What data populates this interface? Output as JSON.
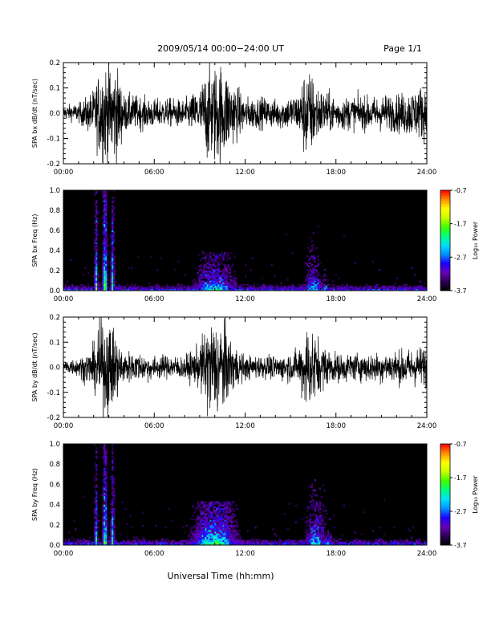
{
  "header": {
    "title": "2009/05/14  00:00−24:00 UT",
    "page": "Page 1/1"
  },
  "footer": {
    "xlabel": "Universal Time (hh:mm)"
  },
  "colorbar": {
    "label": "Log₁₀ Power",
    "ticks": [
      "-0.7",
      "-1.7",
      "-2.7",
      "-3.7"
    ],
    "range": [
      -3.7,
      -0.7
    ],
    "colors": [
      "#000000",
      "#2a0052",
      "#6a00b8",
      "#1e00ff",
      "#0090ff",
      "#00e0ff",
      "#00ff80",
      "#40ff00",
      "#c8ff00",
      "#ffff00",
      "#ff9000",
      "#ff0000"
    ]
  },
  "chart_data": [
    {
      "type": "line",
      "ylabel": "SPA bx dB/dt (nT/sec)",
      "xlim": [
        "00:00",
        "24:00"
      ],
      "xticks": [
        "00:00",
        "06:00",
        "12:00",
        "18:00",
        "24:00"
      ],
      "ylim": [
        -0.2,
        0.2
      ],
      "yticks": [
        "-0.2",
        "-0.1",
        "0.0",
        "0.1",
        "0.2"
      ],
      "series": [
        {
          "x": [
            "00:00",
            "01:00",
            "02:00",
            "02:30",
            "03:00",
            "03:30",
            "04:00",
            "06:00",
            "08:00",
            "09:00",
            "09:30",
            "10:00",
            "10:30",
            "11:00",
            "12:00",
            "14:00",
            "15:30",
            "16:00",
            "16:30",
            "17:00",
            "18:00",
            "20:00",
            "22:00",
            "23:00",
            "24:00"
          ],
          "amplitude": [
            0.03,
            0.04,
            0.1,
            0.21,
            0.21,
            0.21,
            0.08,
            0.06,
            0.06,
            0.1,
            0.2,
            0.21,
            0.21,
            0.15,
            0.07,
            0.06,
            0.08,
            0.2,
            0.16,
            0.1,
            0.07,
            0.07,
            0.08,
            0.1,
            0.12
          ]
        }
      ]
    },
    {
      "type": "heatmap",
      "ylabel": "SPA bx Freq (Hz)",
      "xlim": [
        "00:00",
        "24:00"
      ],
      "xticks": [
        "00:00",
        "06:00",
        "12:00",
        "18:00",
        "24:00"
      ],
      "ylim": [
        0.0,
        1.0
      ],
      "yticks": [
        "0.0",
        "0.2",
        "0.4",
        "0.6",
        "0.8",
        "1.0"
      ],
      "zlim": [
        -3.7,
        -0.7
      ],
      "bursts": [
        {
          "time": "02:10",
          "width_h": 0.15,
          "log_power_low": -1.9,
          "fmax": 1.0
        },
        {
          "time": "02:45",
          "width_h": 0.2,
          "log_power_low": -1.6,
          "fmax": 1.0
        },
        {
          "time": "03:15",
          "width_h": 0.15,
          "log_power_low": -1.8,
          "fmax": 1.0
        },
        {
          "time": "10:00",
          "width_h": 1.8,
          "log_power_low": -2.0,
          "fmax": 0.35
        },
        {
          "time": "11:20",
          "width_h": 0.15,
          "log_power_low": -2.8,
          "fmax": 0.55
        },
        {
          "time": "16:30",
          "width_h": 0.8,
          "log_power_low": -2.4,
          "fmax": 0.6
        },
        {
          "time": "17:20",
          "width_h": 0.4,
          "log_power_low": -2.8,
          "fmax": 0.5
        }
      ]
    },
    {
      "type": "line",
      "ylabel": "SPA by dB/dt (nT/sec)",
      "xlim": [
        "00:00",
        "24:00"
      ],
      "xticks": [
        "00:00",
        "06:00",
        "12:00",
        "18:00",
        "24:00"
      ],
      "ylim": [
        -0.2,
        0.2
      ],
      "yticks": [
        "-0.2",
        "-0.1",
        "0.0",
        "0.1",
        "0.2"
      ],
      "series": [
        {
          "x": [
            "00:00",
            "01:00",
            "02:00",
            "02:30",
            "03:00",
            "03:30",
            "04:00",
            "06:00",
            "08:00",
            "09:00",
            "09:30",
            "10:00",
            "10:30",
            "11:00",
            "12:00",
            "14:00",
            "15:30",
            "16:00",
            "16:30",
            "17:00",
            "18:00",
            "20:00",
            "22:00",
            "23:00",
            "24:00"
          ],
          "amplitude": [
            0.03,
            0.04,
            0.09,
            0.21,
            0.21,
            0.14,
            0.07,
            0.05,
            0.05,
            0.09,
            0.2,
            0.21,
            0.21,
            0.12,
            0.05,
            0.05,
            0.07,
            0.19,
            0.16,
            0.1,
            0.06,
            0.06,
            0.07,
            0.08,
            0.09
          ]
        }
      ]
    },
    {
      "type": "heatmap",
      "ylabel": "SPA by Freq (Hz)",
      "xlim": [
        "00:00",
        "24:00"
      ],
      "xticks": [
        "00:00",
        "06:00",
        "12:00",
        "18:00",
        "24:00"
      ],
      "ylim": [
        0.0,
        1.0
      ],
      "yticks": [
        "0.0",
        "0.2",
        "0.4",
        "0.6",
        "0.8",
        "1.0"
      ],
      "zlim": [
        -3.7,
        -0.7
      ],
      "bursts": [
        {
          "time": "02:10",
          "width_h": 0.15,
          "log_power_low": -2.0,
          "fmax": 1.0
        },
        {
          "time": "02:45",
          "width_h": 0.2,
          "log_power_low": -1.7,
          "fmax": 1.0
        },
        {
          "time": "03:15",
          "width_h": 0.15,
          "log_power_low": -1.9,
          "fmax": 1.0
        },
        {
          "time": "10:00",
          "width_h": 2.0,
          "log_power_low": -1.8,
          "fmax": 0.4
        },
        {
          "time": "16:40",
          "width_h": 0.9,
          "log_power_low": -2.2,
          "fmax": 0.6
        },
        {
          "time": "17:30",
          "width_h": 0.4,
          "log_power_low": -2.7,
          "fmax": 0.5
        }
      ]
    }
  ]
}
